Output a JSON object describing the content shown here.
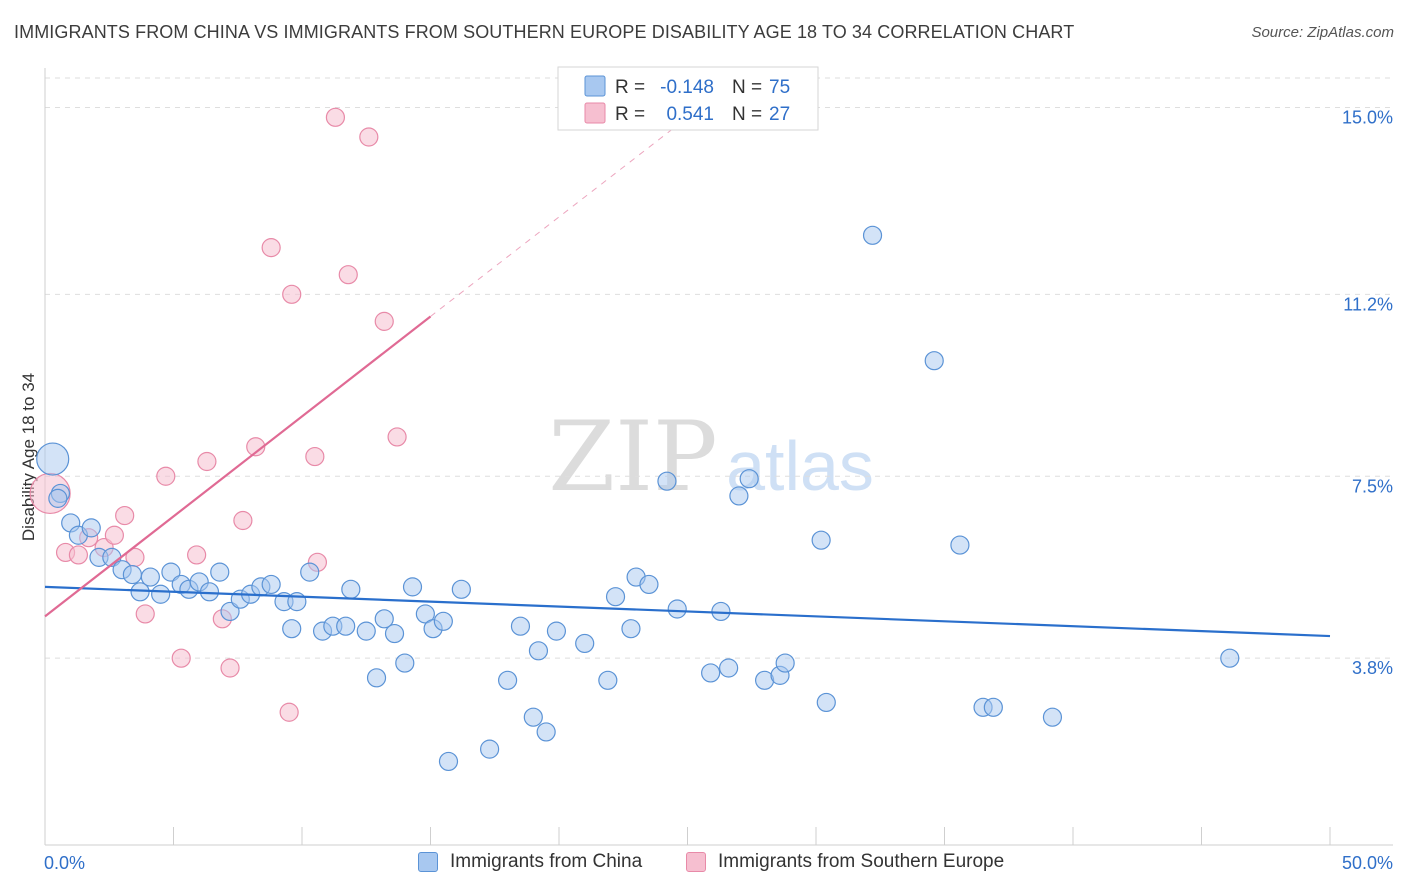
{
  "header": {
    "title": "IMMIGRANTS FROM CHINA VS IMMIGRANTS FROM SOUTHERN EUROPE DISABILITY AGE 18 TO 34 CORRELATION CHART",
    "source": "Source: ZipAtlas.com"
  },
  "watermark": {
    "zip": "ZIP",
    "atlas": "atlas"
  },
  "chart_data": {
    "type": "scatter",
    "ylabel": "Disability Age 18 to 34",
    "xlim": [
      0,
      50
    ],
    "ylim": [
      0,
      15.6
    ],
    "x_tick_labels": [
      "0.0%",
      "50.0%"
    ],
    "y_ticks": [
      3.8,
      7.5,
      11.2,
      15.0
    ],
    "y_tick_labels": [
      "3.8%",
      "7.5%",
      "11.2%",
      "15.0%"
    ],
    "grid": "horizontal dashed",
    "legend_position": "top-center",
    "colors": {
      "china_fill": "#a8c8f0",
      "china_stroke": "#5b93d6",
      "china_line": "#2a6fcc",
      "europe_fill": "#f6bfd0",
      "europe_stroke": "#e88aa8",
      "europe_line": "#e06a94",
      "accent_text": "#2f6fc9"
    },
    "stats": [
      {
        "r_label": "R =",
        "r_value": "-0.148",
        "n_label": "N =",
        "n_value": "75"
      },
      {
        "r_label": "R =",
        "r_value": "0.541",
        "n_label": "N =",
        "n_value": "27"
      }
    ],
    "series": [
      {
        "name": "Immigrants from China",
        "trend": {
          "x": [
            0,
            50
          ],
          "y": [
            5.25,
            4.25
          ]
        },
        "points": [
          [
            0.3,
            7.85
          ],
          [
            0.6,
            7.15
          ],
          [
            1.0,
            6.55
          ],
          [
            1.3,
            6.3
          ],
          [
            1.8,
            6.45
          ],
          [
            2.1,
            5.85
          ],
          [
            2.6,
            5.85
          ],
          [
            3.0,
            5.6
          ],
          [
            3.4,
            5.5
          ],
          [
            3.7,
            5.15
          ],
          [
            4.1,
            5.45
          ],
          [
            4.5,
            5.1
          ],
          [
            4.9,
            5.55
          ],
          [
            5.3,
            5.3
          ],
          [
            5.6,
            5.2
          ],
          [
            6.0,
            5.35
          ],
          [
            6.4,
            5.15
          ],
          [
            6.8,
            5.55
          ],
          [
            7.2,
            4.75
          ],
          [
            7.6,
            5.0
          ],
          [
            8.0,
            5.1
          ],
          [
            8.4,
            5.25
          ],
          [
            8.8,
            5.3
          ],
          [
            9.3,
            4.95
          ],
          [
            9.6,
            4.4
          ],
          [
            9.8,
            4.95
          ],
          [
            10.3,
            5.55
          ],
          [
            10.8,
            4.35
          ],
          [
            11.2,
            4.45
          ],
          [
            11.7,
            4.45
          ],
          [
            11.9,
            5.2
          ],
          [
            12.5,
            4.35
          ],
          [
            12.9,
            3.4
          ],
          [
            13.2,
            4.6
          ],
          [
            13.6,
            4.3
          ],
          [
            14.0,
            3.7
          ],
          [
            14.3,
            5.25
          ],
          [
            14.8,
            4.7
          ],
          [
            15.1,
            4.4
          ],
          [
            15.5,
            4.55
          ],
          [
            15.7,
            1.7
          ],
          [
            16.2,
            5.2
          ],
          [
            17.3,
            1.95
          ],
          [
            18.0,
            3.35
          ],
          [
            18.5,
            4.45
          ],
          [
            19.0,
            2.6
          ],
          [
            19.2,
            3.95
          ],
          [
            19.5,
            2.3
          ],
          [
            19.9,
            4.35
          ],
          [
            21.0,
            4.1
          ],
          [
            21.9,
            3.35
          ],
          [
            22.2,
            5.05
          ],
          [
            22.8,
            4.4
          ],
          [
            23.0,
            5.45
          ],
          [
            23.5,
            5.3
          ],
          [
            24.2,
            7.4
          ],
          [
            24.6,
            4.8
          ],
          [
            25.9,
            3.5
          ],
          [
            26.3,
            4.75
          ],
          [
            26.6,
            3.6
          ],
          [
            27.0,
            7.1
          ],
          [
            27.4,
            7.45
          ],
          [
            28.0,
            3.35
          ],
          [
            28.6,
            3.45
          ],
          [
            28.8,
            3.7
          ],
          [
            30.2,
            6.2
          ],
          [
            30.4,
            2.9
          ],
          [
            32.2,
            12.4
          ],
          [
            34.6,
            9.85
          ],
          [
            35.6,
            6.1
          ],
          [
            36.5,
            2.8
          ],
          [
            36.9,
            2.8
          ],
          [
            39.2,
            2.6
          ],
          [
            46.1,
            3.8
          ],
          [
            0.5,
            7.05
          ]
        ]
      },
      {
        "name": "Immigrants from Southern Europe",
        "trend": {
          "x": [
            0,
            15
          ],
          "y": [
            4.65,
            10.75
          ],
          "extend_to": [
            25.5,
            15.0
          ]
        },
        "points": [
          [
            0.2,
            7.15
          ],
          [
            0.8,
            5.95
          ],
          [
            1.3,
            5.9
          ],
          [
            1.7,
            6.25
          ],
          [
            2.3,
            6.05
          ],
          [
            2.7,
            6.3
          ],
          [
            3.1,
            6.7
          ],
          [
            3.5,
            5.85
          ],
          [
            3.9,
            4.7
          ],
          [
            4.7,
            7.5
          ],
          [
            5.3,
            3.8
          ],
          [
            5.9,
            5.9
          ],
          [
            6.3,
            7.8
          ],
          [
            6.9,
            4.6
          ],
          [
            7.2,
            3.6
          ],
          [
            7.7,
            6.6
          ],
          [
            8.2,
            8.1
          ],
          [
            8.8,
            12.15
          ],
          [
            9.5,
            2.7
          ],
          [
            9.6,
            11.2
          ],
          [
            10.5,
            7.9
          ],
          [
            10.6,
            5.75
          ],
          [
            11.3,
            14.8
          ],
          [
            11.8,
            11.6
          ],
          [
            12.6,
            14.4
          ],
          [
            13.2,
            10.65
          ],
          [
            13.7,
            8.3
          ]
        ]
      }
    ]
  },
  "legend_bottom": [
    {
      "label": "Immigrants from China"
    },
    {
      "label": "Immigrants from Southern Europe"
    }
  ]
}
